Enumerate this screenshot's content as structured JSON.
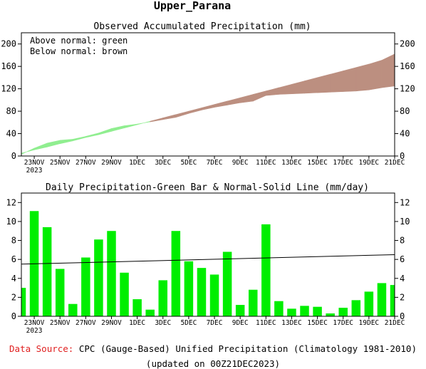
{
  "title": "Upper_Parana",
  "footer": {
    "source_label": "Data Source:",
    "source_text": "CPC (Gauge-Based) Unified Precipitation (Climatology 1981-2010)",
    "updated": "(updated on 00Z21DEC2023)"
  },
  "colors": {
    "above": "#90ee90",
    "below": "#bc8f80",
    "bar": "#00ee00",
    "source_label": "#e02020"
  },
  "chart_data": [
    {
      "type": "area",
      "title": "Observed Accumulated Precipitation (mm)",
      "legend": [
        "Above normal: green",
        "Below normal: brown"
      ],
      "legend_placement": "top-left",
      "x_tick_labels": [
        "23NOV",
        "25NOV",
        "27NOV",
        "29NOV",
        "1DEC",
        "3DEC",
        "5DEC",
        "7DEC",
        "9DEC",
        "11DEC",
        "13DEC",
        "15DEC",
        "17DEC",
        "19DEC",
        "21DEC"
      ],
      "x_year_label": "2023",
      "ylim": [
        0,
        220
      ],
      "y_ticks": [
        0,
        40,
        80,
        120,
        160,
        200
      ],
      "x": [
        "22NOV",
        "23NOV",
        "24NOV",
        "25NOV",
        "26NOV",
        "27NOV",
        "28NOV",
        "29NOV",
        "30NOV",
        "1DEC",
        "2DEC",
        "3DEC",
        "4DEC",
        "5DEC",
        "6DEC",
        "7DEC",
        "8DEC",
        "9DEC",
        "10DEC",
        "11DEC",
        "12DEC",
        "13DEC",
        "14DEC",
        "15DEC",
        "16DEC",
        "17DEC",
        "18DEC",
        "19DEC",
        "20DEC",
        "21DEC"
      ],
      "series": [
        {
          "name": "Observed",
          "values": [
            3,
            14,
            23,
            28,
            30,
            35,
            41,
            49,
            54,
            57,
            61,
            65,
            69,
            76,
            82,
            87,
            91,
            95,
            98,
            108,
            110,
            111,
            112,
            113,
            114,
            115,
            116,
            118,
            122,
            125
          ]
        },
        {
          "name": "Normal",
          "values": [
            5,
            11,
            16,
            22,
            27,
            33,
            38,
            44,
            50,
            56,
            62,
            68,
            74,
            80,
            86,
            92,
            98,
            104,
            110,
            116,
            122,
            128,
            134,
            140,
            146,
            152,
            158,
            164,
            171,
            182
          ]
        }
      ]
    },
    {
      "type": "bar",
      "title": "Daily Precipitation-Green Bar & Normal-Solid Line (mm/day)",
      "x_tick_labels": [
        "23NOV",
        "25NOV",
        "27NOV",
        "29NOV",
        "1DEC",
        "3DEC",
        "5DEC",
        "7DEC",
        "9DEC",
        "11DEC",
        "13DEC",
        "15DEC",
        "17DEC",
        "19DEC",
        "21DEC"
      ],
      "x_year_label": "2023",
      "ylim": [
        0,
        13
      ],
      "y_ticks": [
        0,
        2,
        4,
        6,
        8,
        10,
        12
      ],
      "categories": [
        "22NOV",
        "23NOV",
        "24NOV",
        "25NOV",
        "26NOV",
        "27NOV",
        "28NOV",
        "29NOV",
        "30NOV",
        "1DEC",
        "2DEC",
        "3DEC",
        "4DEC",
        "5DEC",
        "6DEC",
        "7DEC",
        "8DEC",
        "9DEC",
        "10DEC",
        "11DEC",
        "12DEC",
        "13DEC",
        "14DEC",
        "15DEC",
        "16DEC",
        "17DEC",
        "18DEC",
        "19DEC",
        "20DEC",
        "21DEC"
      ],
      "values": [
        3.0,
        11.1,
        9.4,
        5.0,
        1.3,
        6.2,
        8.1,
        9.0,
        4.6,
        1.8,
        0.7,
        3.8,
        9.0,
        5.8,
        5.1,
        4.4,
        6.8,
        1.2,
        2.8,
        9.7,
        1.6,
        0.8,
        1.1,
        1.0,
        0.3,
        0.9,
        1.7,
        2.6,
        3.5,
        3.3
      ],
      "normal_line": [
        5.5,
        6.5
      ]
    }
  ]
}
